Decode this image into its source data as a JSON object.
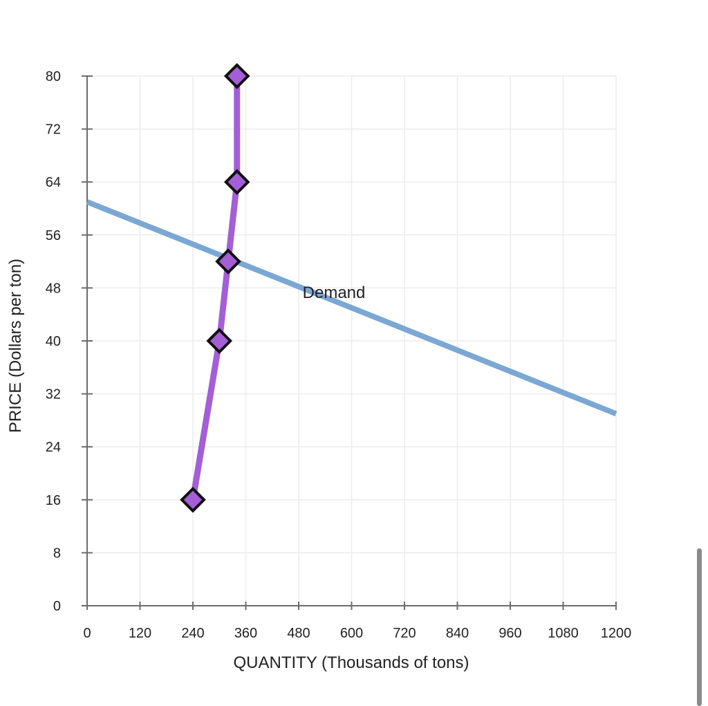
{
  "chart_data": {
    "type": "line",
    "xlabel": "QUANTITY (Thousands of tons)",
    "ylabel": "PRICE (Dollars per ton)",
    "xlim": [
      0,
      1200
    ],
    "ylim": [
      0,
      80
    ],
    "x_ticks": [
      0,
      120,
      240,
      360,
      480,
      600,
      720,
      840,
      960,
      1080,
      1200
    ],
    "y_ticks": [
      0,
      8,
      16,
      24,
      32,
      40,
      48,
      56,
      64,
      72,
      80
    ],
    "grid": true,
    "series": [
      {
        "name": "Demand",
        "color": "#7ba7d3",
        "marker": "none",
        "points": [
          [
            0,
            61
          ],
          [
            1200,
            29
          ]
        ]
      },
      {
        "color": "#a45ed6",
        "marker": "diamond",
        "points": [
          [
            240,
            16
          ],
          [
            300,
            40
          ],
          [
            320,
            52
          ],
          [
            340,
            64
          ],
          [
            340,
            80
          ]
        ]
      }
    ]
  }
}
